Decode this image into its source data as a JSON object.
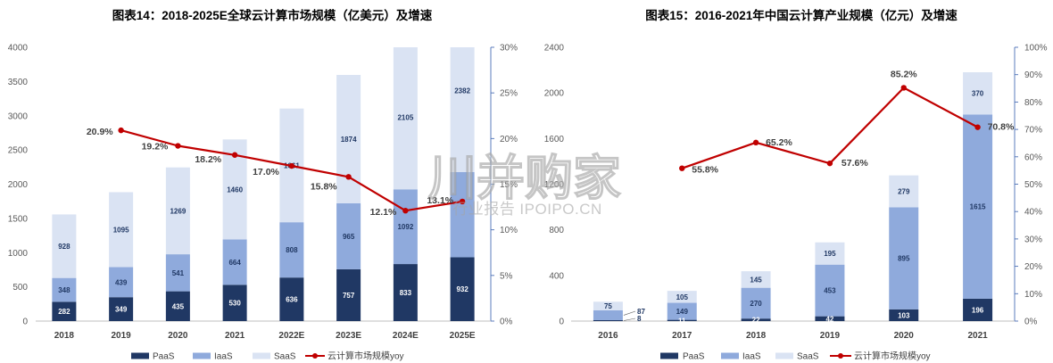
{
  "chart_data": [
    {
      "type": "bar",
      "stacked": true,
      "title": "图表14：2018-2025E全球云计算市场规模（亿美元）及增速",
      "categories": [
        "2018",
        "2019",
        "2020",
        "2021",
        "2022E",
        "2023E",
        "2024E",
        "2025E"
      ],
      "ylim": [
        0,
        4000
      ],
      "yticks": [
        "0",
        "500",
        "1000",
        "1500",
        "2000",
        "2500",
        "3000",
        "3500",
        "4000"
      ],
      "y2lim": [
        0,
        30
      ],
      "y2ticks": [
        "0%",
        "5%",
        "10%",
        "15%",
        "20%",
        "25%",
        "30%"
      ],
      "grid": false,
      "legend": "bottom",
      "series": [
        {
          "name": "PaaS",
          "color": "#203864",
          "label_color": "#ffffff",
          "values": [
            282,
            349,
            435,
            530,
            636,
            757,
            833,
            932
          ],
          "labels": [
            "282",
            "349",
            "435",
            "530",
            "636",
            "757",
            "833",
            "932"
          ]
        },
        {
          "name": "IaaS",
          "color": "#8faadc",
          "label_color": "#203864",
          "values": [
            348,
            439,
            541,
            664,
            808,
            965,
            1092,
            1244
          ],
          "labels": [
            "348",
            "439",
            "541",
            "664",
            "808",
            "965",
            "1092",
            null
          ]
        },
        {
          "name": "SaaS",
          "color": "#dae3f3",
          "label_color": "#203864",
          "values": [
            928,
            1095,
            1269,
            1460,
            1661,
            1874,
            2105,
            2382
          ],
          "labels": [
            "928",
            "1095",
            "1269",
            "1460",
            "1661",
            "1874",
            "2105",
            "2382"
          ]
        }
      ],
      "line_series": {
        "name": "云计算市场规模yoy",
        "type": "line",
        "axis": "right",
        "color": "#c00000",
        "values": [
          null,
          20.9,
          19.2,
          18.2,
          17.0,
          15.8,
          12.1,
          13.1
        ],
        "labels": [
          null,
          "20.9%",
          "19.2%",
          "18.2%",
          "17.0%",
          "15.8%",
          "12.1%",
          "13.1%"
        ]
      }
    },
    {
      "type": "bar",
      "stacked": true,
      "title": "图表15：2016-2021年中国云计算产业规模（亿元）及增速",
      "categories": [
        "2016",
        "2017",
        "2018",
        "2019",
        "2020",
        "2021"
      ],
      "ylim": [
        0,
        2400
      ],
      "yticks": [
        "0",
        "400",
        "800",
        "1200",
        "1600",
        "2000",
        "2400"
      ],
      "y2lim": [
        0,
        100
      ],
      "y2ticks": [
        "0%",
        "10%",
        "20%",
        "30%",
        "40%",
        "50%",
        "60%",
        "70%",
        "80%",
        "90%",
        "100%"
      ],
      "grid": false,
      "legend": "bottom",
      "series": [
        {
          "name": "PaaS",
          "color": "#203864",
          "label_color": "#ffffff",
          "values": [
            8,
            11,
            22,
            42,
            103,
            196
          ],
          "labels": [
            "8",
            "11",
            "22",
            "42",
            "103",
            "196"
          ]
        },
        {
          "name": "IaaS",
          "color": "#8faadc",
          "label_color": "#203864",
          "values": [
            87,
            149,
            270,
            453,
            895,
            1615
          ],
          "labels": [
            "87",
            "149",
            "270",
            "453",
            "895",
            "1615"
          ]
        },
        {
          "name": "SaaS",
          "color": "#dae3f3",
          "label_color": "#203864",
          "values": [
            75,
            105,
            145,
            195,
            279,
            370
          ],
          "labels": [
            "75",
            "105",
            "145",
            "195",
            "279",
            "370"
          ]
        }
      ],
      "line_series": {
        "name": "云计算市场规模yoy",
        "type": "line",
        "axis": "right",
        "color": "#c00000",
        "values": [
          null,
          55.8,
          65.2,
          57.6,
          85.2,
          70.8
        ],
        "labels": [
          null,
          "55.8%",
          "65.2%",
          "57.6%",
          "85.2%",
          "70.8%"
        ]
      }
    }
  ],
  "watermark": {
    "main": "川并购家",
    "sub": "行业报告 IPOIPO.CN"
  }
}
